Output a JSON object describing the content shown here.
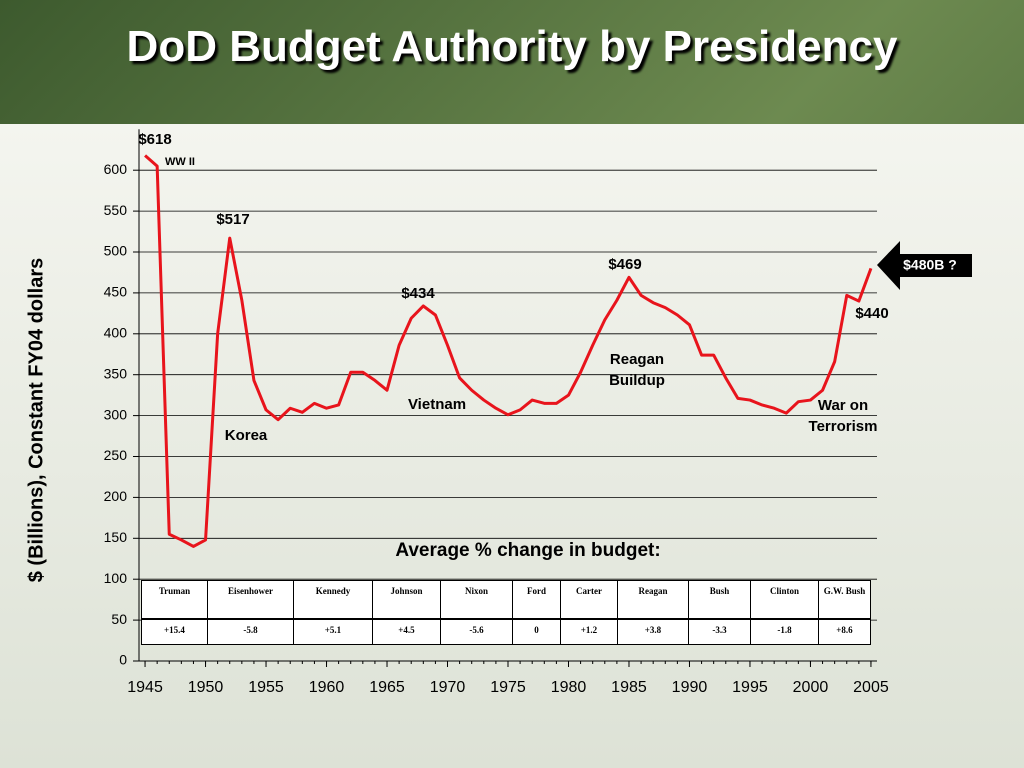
{
  "chart_data": {
    "type": "line",
    "title": "DoD Budget Authority by Presidency",
    "y_label": "$ (Billions), Constant FY04 dollars",
    "x": [
      1945,
      1946,
      1947,
      1948,
      1949,
      1950,
      1951,
      1952,
      1953,
      1954,
      1955,
      1956,
      1957,
      1958,
      1959,
      1960,
      1961,
      1962,
      1963,
      1964,
      1965,
      1966,
      1967,
      1968,
      1969,
      1970,
      1971,
      1972,
      1973,
      1974,
      1975,
      1976,
      1977,
      1978,
      1979,
      1980,
      1981,
      1982,
      1983,
      1984,
      1985,
      1986,
      1987,
      1988,
      1989,
      1990,
      1991,
      1992,
      1993,
      1994,
      1995,
      1996,
      1997,
      1998,
      1999,
      2000,
      2001,
      2002,
      2003,
      2004,
      2005
    ],
    "series": [
      {
        "name": "DoD Budget Authority",
        "color": "#e8141c",
        "values": [
          618,
          605,
          155,
          148,
          140,
          148,
          400,
          517,
          441,
          343,
          307,
          295,
          309,
          304,
          315,
          309,
          313,
          353,
          353,
          343,
          331,
          386,
          419,
          434,
          423,
          386,
          346,
          331,
          319,
          309,
          301,
          307,
          319,
          315,
          315,
          325,
          353,
          386,
          417,
          441,
          469,
          447,
          438,
          432,
          423,
          411,
          374,
          374,
          346,
          321,
          319,
          313,
          309,
          303,
          317,
          319,
          331,
          366,
          447,
          440,
          480
        ]
      }
    ],
    "xlim": [
      1944.5,
      2005.5
    ],
    "xticks": [
      1945,
      1950,
      1955,
      1960,
      1965,
      1970,
      1975,
      1980,
      1985,
      1990,
      1995,
      2000,
      2005
    ],
    "ylim": [
      0,
      650
    ],
    "yticks": [
      0,
      50,
      100,
      150,
      200,
      250,
      300,
      350,
      400,
      450,
      500,
      550,
      600
    ],
    "grid": true,
    "annotations": [
      "$618",
      "WW II",
      "$517",
      "Korea",
      "$434",
      "Vietnam",
      "$469",
      "Reagan",
      "Buildup",
      "$440",
      "War on",
      "Terrorism"
    ],
    "callout": "$480B ?",
    "table": {
      "title": "Average % change in budget:",
      "headers": [
        "Truman",
        "Eisenhower",
        "Kennedy",
        "Johnson",
        "Nixon",
        "Ford",
        "Carter",
        "Reagan",
        "Bush",
        "Clinton",
        "G.W. Bush"
      ],
      "values": [
        "+15.4",
        "-5.8",
        "+5.1",
        "+4.5",
        "-5.6",
        "0",
        "+1.2",
        "+3.8",
        "-3.3",
        "-1.8",
        "+8.6"
      ]
    }
  }
}
